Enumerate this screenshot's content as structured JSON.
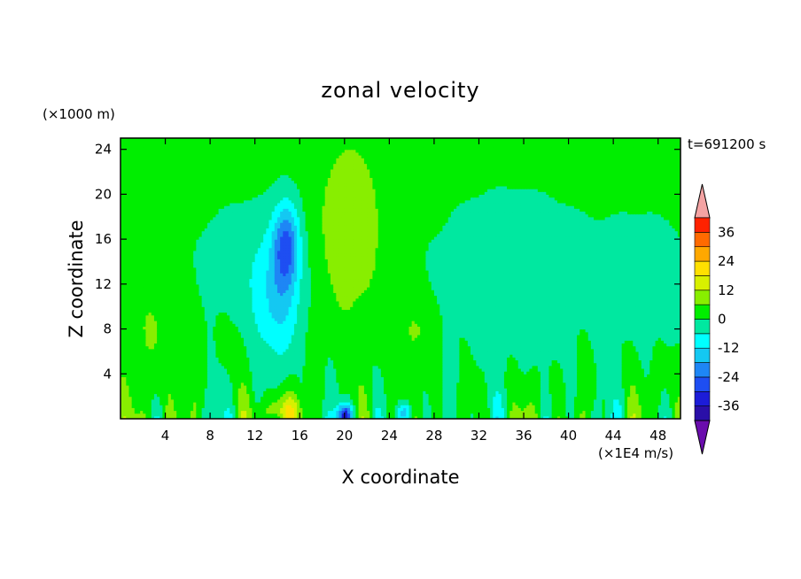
{
  "title": "zonal velocity",
  "z_unit": "(×1000 m)",
  "x_unit": "(×1E4 m/s)",
  "time_label": "t=691200 s",
  "chart_data": {
    "type": "heatmap",
    "title": "zonal velocity",
    "xlabel": "X coordinate",
    "ylabel": "Z coordinate",
    "xlim": [
      0,
      50
    ],
    "ylim": [
      0,
      25
    ],
    "x_ticks": [
      4,
      8,
      12,
      16,
      20,
      24,
      28,
      32,
      36,
      40,
      44,
      48
    ],
    "y_ticks": [
      4,
      8,
      12,
      16,
      20,
      24
    ],
    "colorbar": {
      "levels": [
        -42,
        -36,
        -30,
        -24,
        -18,
        -12,
        -6,
        0,
        6,
        12,
        18,
        24,
        30,
        36,
        42
      ],
      "colors": [
        "#6a0dad",
        "#2a0fa8",
        "#1c1cd8",
        "#1e4ef2",
        "#1e86f5",
        "#14c8f2",
        "#00ffff",
        "#00e8a0",
        "#00ee00",
        "#88ee00",
        "#d8f000",
        "#ffe000",
        "#ffa800",
        "#ff6a00",
        "#ff2200",
        "#f4a3a3"
      ],
      "tick_labels": [
        "36",
        "24",
        "12",
        "0",
        "-12",
        "-24",
        "-36"
      ],
      "tick_values": [
        36,
        24,
        12,
        0,
        -12,
        -24,
        -36
      ]
    },
    "approx_features": [
      {
        "feature": "negative jet core",
        "x": 14.5,
        "z": 17,
        "value": -24
      },
      {
        "feature": "positive band",
        "x": 20.5,
        "z": 18,
        "value": 12
      },
      {
        "feature": "near-surface minimum",
        "x": 20,
        "z": 0.5,
        "value": -36
      }
    ]
  }
}
